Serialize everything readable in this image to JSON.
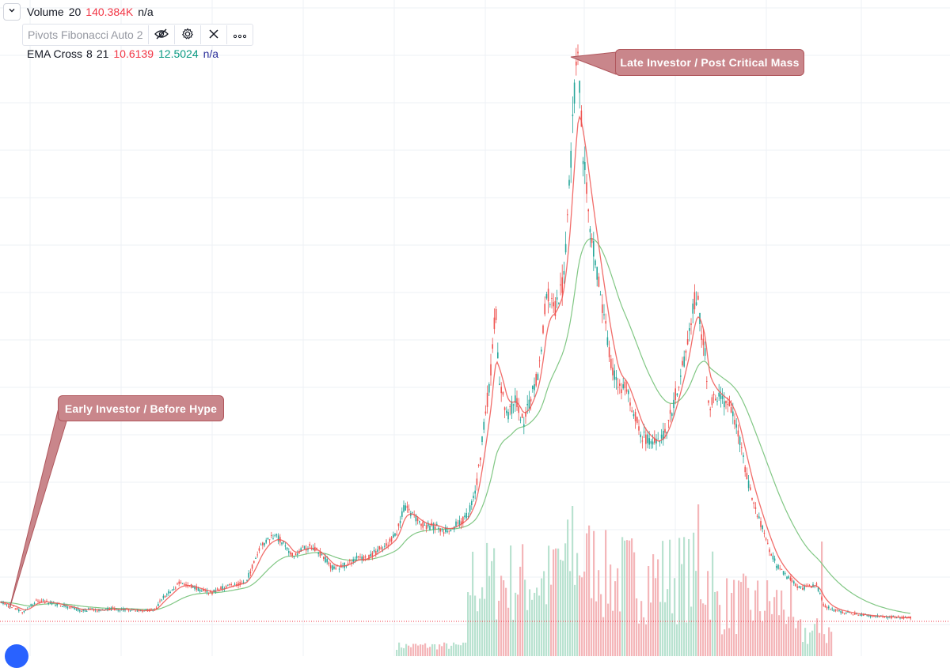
{
  "legend": {
    "volume": {
      "name": "Volume",
      "period": "20",
      "value": "140.384K",
      "na": "n/a"
    },
    "pivots": {
      "name": "Pivots Fibonacci Auto 2"
    },
    "ema": {
      "name": "EMA Cross",
      "fast": "8",
      "slow": "21",
      "value1": "10.6139",
      "value2": "12.5024",
      "na": "n/a"
    }
  },
  "callouts": {
    "early": "Early Investor / Before Hype",
    "late": "Late Investor / Post Critical Mass"
  },
  "icons": {
    "collapse": "chevron-down-icon",
    "hide": "eye-off-icon",
    "settings": "gear-icon",
    "remove": "close-icon",
    "more": "more-icon",
    "logo": "tradingview-logo-icon"
  },
  "colors": {
    "up": "#26a69a",
    "down": "#ef5350",
    "ema_fast": "#ef5350",
    "ema_slow": "#81c784",
    "volume_up": "#b9e2d0",
    "volume_down": "#f4b6b9",
    "callout": "#c9868b",
    "last_price_line": "#f23645"
  },
  "chart_data": {
    "type": "line",
    "description_series": [
      {
        "name": "Price",
        "x": [
          0,
          15,
          30,
          45,
          55,
          70,
          90,
          100,
          115,
          130,
          140,
          150,
          165,
          180,
          195,
          205,
          215,
          225,
          235,
          250,
          265,
          280,
          295,
          310,
          320,
          330,
          340,
          350,
          360,
          370,
          380,
          390,
          400,
          410,
          420,
          430,
          440,
          450,
          460,
          470,
          480,
          490,
          500,
          510,
          520,
          530,
          540,
          550,
          560,
          570,
          580,
          590,
          600,
          610,
          615,
          620,
          625,
          630,
          640,
          650,
          660,
          670,
          680,
          690,
          700,
          710,
          715,
          720,
          725,
          730,
          735,
          740,
          745,
          750,
          760,
          770,
          780,
          790,
          800,
          810,
          820,
          830,
          840,
          850,
          860,
          870,
          875,
          880,
          885,
          890,
          895,
          900,
          910,
          920,
          930,
          940,
          950,
          960,
          970,
          980,
          990,
          1000,
          1010,
          1020,
          1030,
          1035,
          1040,
          1050,
          1060,
          1080,
          1100,
          1120,
          1140,
          1150
        ],
        "values": [
          2.0,
          1.5,
          0.9,
          2.2,
          2.1,
          1.8,
          1.4,
          1.1,
          1.2,
          1.1,
          1.3,
          1.2,
          1.2,
          1.0,
          1.2,
          2.5,
          3.2,
          4.0,
          3.9,
          3.4,
          3.0,
          3.5,
          3.9,
          4.2,
          6.2,
          8.2,
          8.9,
          9.0,
          8.2,
          6.8,
          7.8,
          8.0,
          7.5,
          6.6,
          5.6,
          5.8,
          6.2,
          6.8,
          6.6,
          7.2,
          7.8,
          8.4,
          9.3,
          12.5,
          11.6,
          10.5,
          10.2,
          10.3,
          9.8,
          10.0,
          10.6,
          11.4,
          14.0,
          20.5,
          24.0,
          27.5,
          34.0,
          26.0,
          22.0,
          24.0,
          21.5,
          24.0,
          27.0,
          35.5,
          33.5,
          36.5,
          42.0,
          49.0,
          58.0,
          61.0,
          51.0,
          47.0,
          43.0,
          40.0,
          34.0,
          28.5,
          25.0,
          25.5,
          22.5,
          20.0,
          19.5,
          19.0,
          20.5,
          23.5,
          27.0,
          31.0,
          34.5,
          35.0,
          31.5,
          28.5,
          22.0,
          24.5,
          24.0,
          23.5,
          21.0,
          16.5,
          13.0,
          10.5,
          8.0,
          6.0,
          5.0,
          4.2,
          3.5,
          3.6,
          3.9,
          3.0,
          1.6,
          1.2,
          1.0,
          0.7,
          0.5,
          0.4,
          0.3,
          0.3
        ]
      }
    ],
    "ema_fast": "8",
    "ema_slow": "21",
    "volume_note": "Volume histogram shown only as bars at the bottom"
  }
}
